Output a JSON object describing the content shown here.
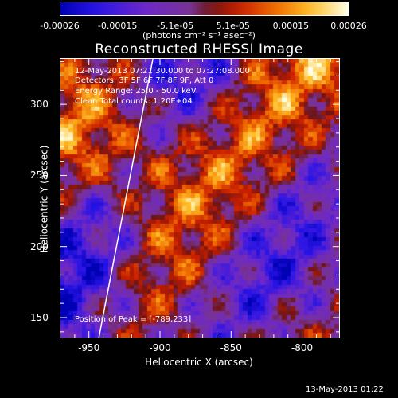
{
  "colorbar": {
    "ticks": [
      "-0.00026",
      "-0.00015",
      "-5.1e-05",
      "5.1e-05",
      "0.00015",
      "0.00026"
    ],
    "unit": "(photons cm⁻² s⁻¹ asec⁻²)"
  },
  "title": "Reconstructed RHESSI Image",
  "info": {
    "line1": "12-May-2013 07:21:30.000 to 07:27:08.000",
    "line2": "Detectors: 3F 5F 6F 7F 8F 9F, Att 0",
    "line3": "Energy Range: 25.0 - 50.0 keV",
    "line4": "Clean     Total counts: 1.20E+04",
    "peak": "Position of Peak = [-789,233]"
  },
  "footer": {
    "timestamp": "13-May-2013 01:22"
  },
  "colors": {
    "background": "#000000",
    "text": "#ffffff",
    "limb_line": "#ffffff"
  },
  "chart_data": {
    "type": "heatmap",
    "title": "Reconstructed RHESSI Image",
    "xlabel": "Heliocentric X (arcsec)",
    "ylabel": "Heliocentric Y (arcsec)",
    "xticks": [
      "-950",
      "-900",
      "-850",
      "-800"
    ],
    "yticks": [
      "300",
      "250",
      "200",
      "150"
    ],
    "xlim": [
      -970,
      -774
    ],
    "ylim": [
      136,
      332
    ],
    "colorbar_range": [
      -0.00026,
      0.00026
    ],
    "colormap": "blue-purple-red-orange-yellow-white",
    "grid": false,
    "peak_position": [
      -789,
      233
    ],
    "limb_line": [
      [
        -943,
        136
      ],
      [
        -905,
        332
      ]
    ]
  }
}
